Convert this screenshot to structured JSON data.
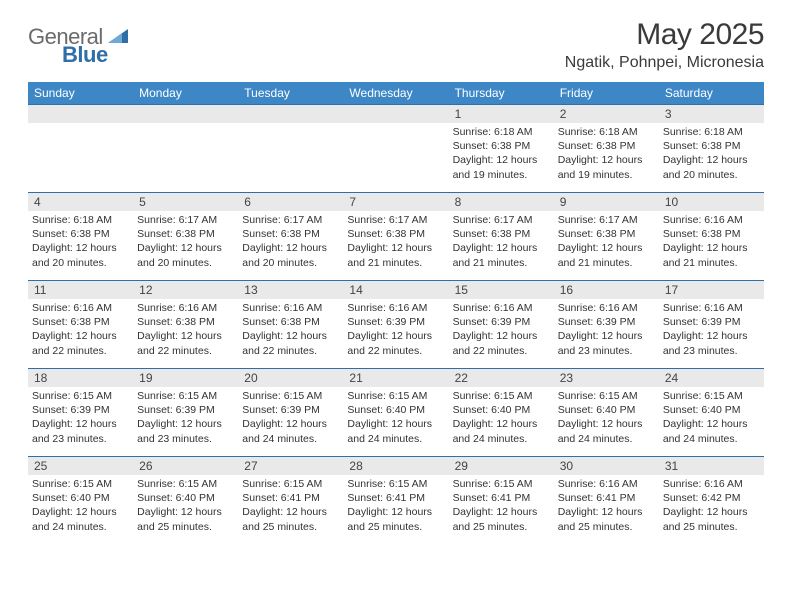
{
  "logo": {
    "general": "General",
    "blue": "Blue"
  },
  "title": "May 2025",
  "location": "Ngatik, Pohnpei, Micronesia",
  "colors": {
    "header_bg": "#3d87c7",
    "band_bg": "#e9e9e9",
    "band_border": "#2f6fa8",
    "text": "#333333",
    "logo_gray": "#6b6b6b",
    "logo_blue": "#2f6fa8"
  },
  "typography": {
    "title_fontsize": 30,
    "location_fontsize": 16,
    "weekday_fontsize": 12,
    "daynum_fontsize": 12,
    "body_fontsize": 10.5
  },
  "weekdays": [
    "Sunday",
    "Monday",
    "Tuesday",
    "Wednesday",
    "Thursday",
    "Friday",
    "Saturday"
  ],
  "weeks": [
    [
      {
        "n": "",
        "sr": "",
        "ss": "",
        "d1": "",
        "d2": "",
        "empty": true
      },
      {
        "n": "",
        "sr": "",
        "ss": "",
        "d1": "",
        "d2": "",
        "empty": true
      },
      {
        "n": "",
        "sr": "",
        "ss": "",
        "d1": "",
        "d2": "",
        "empty": true
      },
      {
        "n": "",
        "sr": "",
        "ss": "",
        "d1": "",
        "d2": "",
        "empty": true
      },
      {
        "n": "1",
        "sr": "Sunrise: 6:18 AM",
        "ss": "Sunset: 6:38 PM",
        "d1": "Daylight: 12 hours",
        "d2": "and 19 minutes."
      },
      {
        "n": "2",
        "sr": "Sunrise: 6:18 AM",
        "ss": "Sunset: 6:38 PM",
        "d1": "Daylight: 12 hours",
        "d2": "and 19 minutes."
      },
      {
        "n": "3",
        "sr": "Sunrise: 6:18 AM",
        "ss": "Sunset: 6:38 PM",
        "d1": "Daylight: 12 hours",
        "d2": "and 20 minutes."
      }
    ],
    [
      {
        "n": "4",
        "sr": "Sunrise: 6:18 AM",
        "ss": "Sunset: 6:38 PM",
        "d1": "Daylight: 12 hours",
        "d2": "and 20 minutes."
      },
      {
        "n": "5",
        "sr": "Sunrise: 6:17 AM",
        "ss": "Sunset: 6:38 PM",
        "d1": "Daylight: 12 hours",
        "d2": "and 20 minutes."
      },
      {
        "n": "6",
        "sr": "Sunrise: 6:17 AM",
        "ss": "Sunset: 6:38 PM",
        "d1": "Daylight: 12 hours",
        "d2": "and 20 minutes."
      },
      {
        "n": "7",
        "sr": "Sunrise: 6:17 AM",
        "ss": "Sunset: 6:38 PM",
        "d1": "Daylight: 12 hours",
        "d2": "and 21 minutes."
      },
      {
        "n": "8",
        "sr": "Sunrise: 6:17 AM",
        "ss": "Sunset: 6:38 PM",
        "d1": "Daylight: 12 hours",
        "d2": "and 21 minutes."
      },
      {
        "n": "9",
        "sr": "Sunrise: 6:17 AM",
        "ss": "Sunset: 6:38 PM",
        "d1": "Daylight: 12 hours",
        "d2": "and 21 minutes."
      },
      {
        "n": "10",
        "sr": "Sunrise: 6:16 AM",
        "ss": "Sunset: 6:38 PM",
        "d1": "Daylight: 12 hours",
        "d2": "and 21 minutes."
      }
    ],
    [
      {
        "n": "11",
        "sr": "Sunrise: 6:16 AM",
        "ss": "Sunset: 6:38 PM",
        "d1": "Daylight: 12 hours",
        "d2": "and 22 minutes."
      },
      {
        "n": "12",
        "sr": "Sunrise: 6:16 AM",
        "ss": "Sunset: 6:38 PM",
        "d1": "Daylight: 12 hours",
        "d2": "and 22 minutes."
      },
      {
        "n": "13",
        "sr": "Sunrise: 6:16 AM",
        "ss": "Sunset: 6:38 PM",
        "d1": "Daylight: 12 hours",
        "d2": "and 22 minutes."
      },
      {
        "n": "14",
        "sr": "Sunrise: 6:16 AM",
        "ss": "Sunset: 6:39 PM",
        "d1": "Daylight: 12 hours",
        "d2": "and 22 minutes."
      },
      {
        "n": "15",
        "sr": "Sunrise: 6:16 AM",
        "ss": "Sunset: 6:39 PM",
        "d1": "Daylight: 12 hours",
        "d2": "and 22 minutes."
      },
      {
        "n": "16",
        "sr": "Sunrise: 6:16 AM",
        "ss": "Sunset: 6:39 PM",
        "d1": "Daylight: 12 hours",
        "d2": "and 23 minutes."
      },
      {
        "n": "17",
        "sr": "Sunrise: 6:16 AM",
        "ss": "Sunset: 6:39 PM",
        "d1": "Daylight: 12 hours",
        "d2": "and 23 minutes."
      }
    ],
    [
      {
        "n": "18",
        "sr": "Sunrise: 6:15 AM",
        "ss": "Sunset: 6:39 PM",
        "d1": "Daylight: 12 hours",
        "d2": "and 23 minutes."
      },
      {
        "n": "19",
        "sr": "Sunrise: 6:15 AM",
        "ss": "Sunset: 6:39 PM",
        "d1": "Daylight: 12 hours",
        "d2": "and 23 minutes."
      },
      {
        "n": "20",
        "sr": "Sunrise: 6:15 AM",
        "ss": "Sunset: 6:39 PM",
        "d1": "Daylight: 12 hours",
        "d2": "and 24 minutes."
      },
      {
        "n": "21",
        "sr": "Sunrise: 6:15 AM",
        "ss": "Sunset: 6:40 PM",
        "d1": "Daylight: 12 hours",
        "d2": "and 24 minutes."
      },
      {
        "n": "22",
        "sr": "Sunrise: 6:15 AM",
        "ss": "Sunset: 6:40 PM",
        "d1": "Daylight: 12 hours",
        "d2": "and 24 minutes."
      },
      {
        "n": "23",
        "sr": "Sunrise: 6:15 AM",
        "ss": "Sunset: 6:40 PM",
        "d1": "Daylight: 12 hours",
        "d2": "and 24 minutes."
      },
      {
        "n": "24",
        "sr": "Sunrise: 6:15 AM",
        "ss": "Sunset: 6:40 PM",
        "d1": "Daylight: 12 hours",
        "d2": "and 24 minutes."
      }
    ],
    [
      {
        "n": "25",
        "sr": "Sunrise: 6:15 AM",
        "ss": "Sunset: 6:40 PM",
        "d1": "Daylight: 12 hours",
        "d2": "and 24 minutes."
      },
      {
        "n": "26",
        "sr": "Sunrise: 6:15 AM",
        "ss": "Sunset: 6:40 PM",
        "d1": "Daylight: 12 hours",
        "d2": "and 25 minutes."
      },
      {
        "n": "27",
        "sr": "Sunrise: 6:15 AM",
        "ss": "Sunset: 6:41 PM",
        "d1": "Daylight: 12 hours",
        "d2": "and 25 minutes."
      },
      {
        "n": "28",
        "sr": "Sunrise: 6:15 AM",
        "ss": "Sunset: 6:41 PM",
        "d1": "Daylight: 12 hours",
        "d2": "and 25 minutes."
      },
      {
        "n": "29",
        "sr": "Sunrise: 6:15 AM",
        "ss": "Sunset: 6:41 PM",
        "d1": "Daylight: 12 hours",
        "d2": "and 25 minutes."
      },
      {
        "n": "30",
        "sr": "Sunrise: 6:16 AM",
        "ss": "Sunset: 6:41 PM",
        "d1": "Daylight: 12 hours",
        "d2": "and 25 minutes."
      },
      {
        "n": "31",
        "sr": "Sunrise: 6:16 AM",
        "ss": "Sunset: 6:42 PM",
        "d1": "Daylight: 12 hours",
        "d2": "and 25 minutes."
      }
    ]
  ]
}
